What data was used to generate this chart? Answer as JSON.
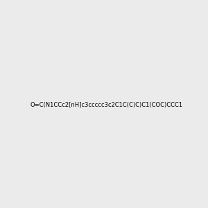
{
  "smiles": "O=C(N1CCc2[nH]c3ccccc3c2C1C(C)C)C1(COC)CCC1",
  "bg_color": "#ebebeb",
  "img_size": [
    300,
    300
  ],
  "bond_color": "#1a1a1a",
  "n_color": "#2020cc",
  "o_color": "#cc2020",
  "title": ""
}
